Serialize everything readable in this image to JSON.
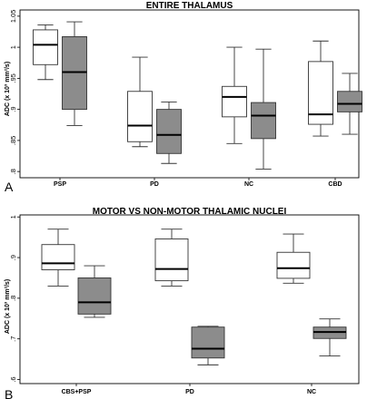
{
  "chart_data": [
    {
      "type": "boxplot",
      "panel_label": "A",
      "title": "ENTIRE THALAMUS",
      "ylabel": "ADC (x 10³ mm²/s)",
      "ylim": [
        0.79,
        1.06
      ],
      "yticks": [
        "1.05",
        "1",
        ".95",
        ".9",
        ".85",
        ".8"
      ],
      "yticks_values": [
        1.05,
        1.0,
        0.95,
        0.9,
        0.85,
        0.8
      ],
      "categories": [
        "PSP",
        "PD",
        "NC",
        "CBD"
      ],
      "series": [
        {
          "fill": "#ffffff",
          "boxes": [
            {
              "min": 0.948,
              "q1": 0.972,
              "median": 1.004,
              "q3": 1.028,
              "max": 1.036
            },
            {
              "min": 0.84,
              "q1": 0.848,
              "median": 0.874,
              "q3": 0.929,
              "max": 0.984
            },
            {
              "min": 0.845,
              "q1": 0.888,
              "median": 0.92,
              "q3": 0.937,
              "max": 1.0
            },
            {
              "min": 0.857,
              "q1": 0.876,
              "median": 0.892,
              "q3": 0.977,
              "max": 1.01
            }
          ]
        },
        {
          "fill": "#8c8c8c",
          "boxes": [
            {
              "min": 0.874,
              "q1": 0.9,
              "median": 0.96,
              "q3": 1.017,
              "max": 1.041
            },
            {
              "min": 0.813,
              "q1": 0.829,
              "median": 0.859,
              "q3": 0.9,
              "max": 0.912
            },
            {
              "min": 0.804,
              "q1": 0.853,
              "median": 0.89,
              "q3": 0.911,
              "max": 0.997
            },
            {
              "min": 0.86,
              "q1": 0.896,
              "median": 0.909,
              "q3": 0.929,
              "max": 0.958
            }
          ]
        }
      ],
      "grid": false
    },
    {
      "type": "boxplot",
      "panel_label": "B",
      "title": "MOTOR VS NON-MOTOR THALAMIC NUCLEI",
      "ylabel": "ADC (x 10³ mm²/s)",
      "ylim": [
        0.59,
        1.005
      ],
      "yticks": [
        "1",
        ".9",
        ".8",
        ".7",
        ".6"
      ],
      "yticks_values": [
        1.0,
        0.9,
        0.8,
        0.7,
        0.6
      ],
      "categories": [
        "CBS+PSP",
        "PD",
        "NC"
      ],
      "series": [
        {
          "fill": "#ffffff",
          "boxes": [
            {
              "min": 0.83,
              "q1": 0.87,
              "median": 0.886,
              "q3": 0.932,
              "max": 0.97
            },
            {
              "min": 0.83,
              "q1": 0.843,
              "median": 0.872,
              "q3": 0.946,
              "max": 0.97
            },
            {
              "min": 0.837,
              "q1": 0.849,
              "median": 0.874,
              "q3": 0.913,
              "max": 0.958
            }
          ]
        },
        {
          "fill": "#8c8c8c",
          "boxes": [
            {
              "min": 0.753,
              "q1": 0.761,
              "median": 0.79,
              "q3": 0.85,
              "max": 0.88
            },
            {
              "min": 0.636,
              "q1": 0.653,
              "median": 0.676,
              "q3": 0.729,
              "max": 0.731
            },
            {
              "min": 0.658,
              "q1": 0.701,
              "median": 0.717,
              "q3": 0.729,
              "max": 0.749
            }
          ]
        }
      ],
      "grid": false
    }
  ]
}
